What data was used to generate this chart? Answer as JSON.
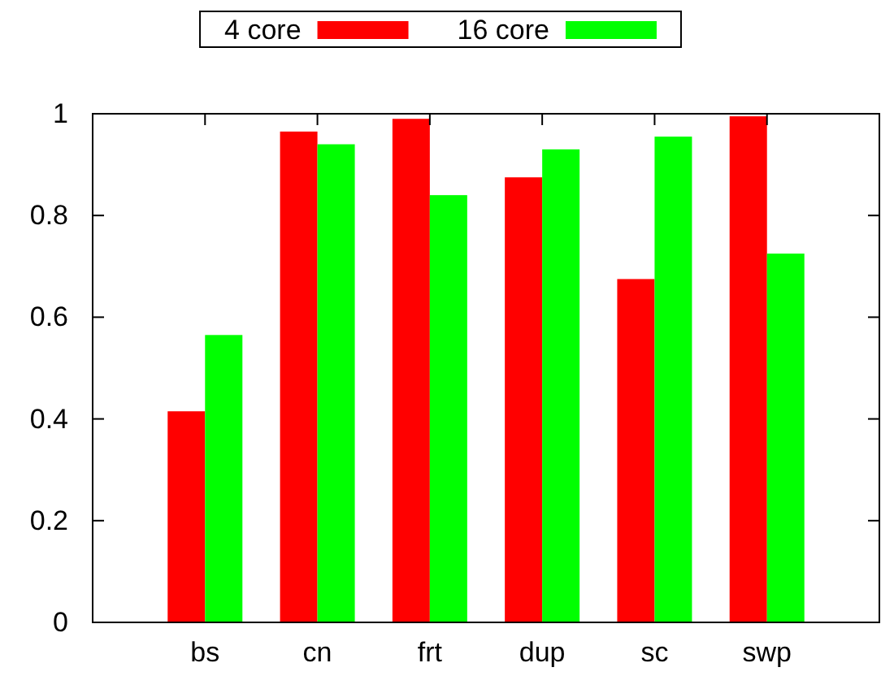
{
  "chart_data": {
    "type": "bar",
    "categories": [
      "bs",
      "cn",
      "frt",
      "dup",
      "sc",
      "swp"
    ],
    "series": [
      {
        "name": "4 core",
        "color": "#ff0000",
        "values": [
          0.415,
          0.965,
          0.99,
          0.875,
          0.675,
          0.995
        ]
      },
      {
        "name": "16 core",
        "color": "#00ff00",
        "values": [
          0.565,
          0.94,
          0.84,
          0.93,
          0.955,
          0.725
        ]
      }
    ],
    "ylim": [
      0,
      1
    ],
    "yticks": [
      0,
      0.2,
      0.4,
      0.6,
      0.8,
      1
    ],
    "legend": "top",
    "grid": false
  }
}
